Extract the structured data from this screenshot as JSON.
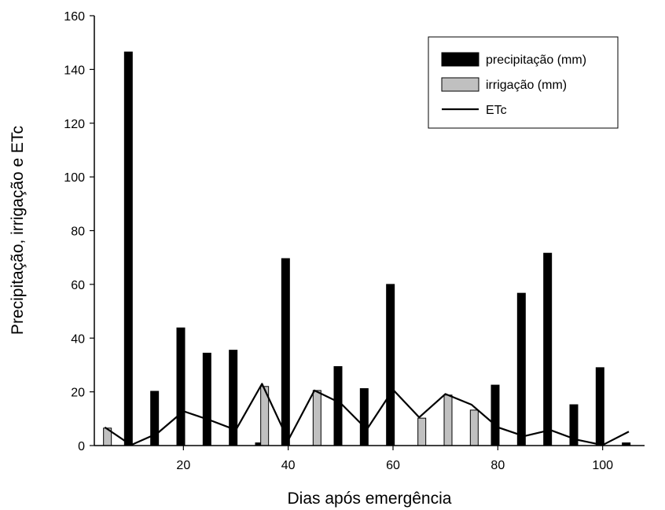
{
  "chart_data": {
    "type": "bar",
    "title": "",
    "xlabel": "Dias após emergência",
    "ylabel": "Precipitação, irrigação e ETc",
    "xlim": [
      3,
      108
    ],
    "ylim": [
      0,
      160
    ],
    "xticks": [
      20,
      40,
      60,
      80,
      100
    ],
    "yticks": [
      0,
      20,
      40,
      60,
      80,
      100,
      120,
      140,
      160
    ],
    "grid": false,
    "legend_position": "top-right",
    "series": [
      {
        "name": "precipitação (mm)",
        "type": "bar",
        "color": "#000000",
        "points": [
          {
            "x": 9.5,
            "y": 146.5
          },
          {
            "x": 14.5,
            "y": 20.2
          },
          {
            "x": 19.5,
            "y": 43.8
          },
          {
            "x": 24.5,
            "y": 34.4
          },
          {
            "x": 29.5,
            "y": 35.5
          },
          {
            "x": 34.5,
            "y": 1.0
          },
          {
            "x": 39.5,
            "y": 69.6
          },
          {
            "x": 49.5,
            "y": 29.4
          },
          {
            "x": 54.5,
            "y": 21.2
          },
          {
            "x": 59.5,
            "y": 60.0
          },
          {
            "x": 79.5,
            "y": 22.5
          },
          {
            "x": 84.5,
            "y": 56.7
          },
          {
            "x": 89.5,
            "y": 71.6
          },
          {
            "x": 94.5,
            "y": 15.2
          },
          {
            "x": 99.5,
            "y": 29.0
          },
          {
            "x": 104.5,
            "y": 1.0
          }
        ]
      },
      {
        "name": "irrigação (mm)",
        "type": "bar",
        "color": "#c0c0c0",
        "points": [
          {
            "x": 5.5,
            "y": 6.5
          },
          {
            "x": 35.5,
            "y": 22.0
          },
          {
            "x": 45.5,
            "y": 20.5
          },
          {
            "x": 65.5,
            "y": 10.2
          },
          {
            "x": 70.5,
            "y": 18.8
          },
          {
            "x": 75.5,
            "y": 13.2
          }
        ]
      },
      {
        "name": "ETc",
        "type": "line",
        "color": "#000000",
        "x": [
          5,
          10,
          15,
          20,
          25,
          30,
          35,
          40,
          45,
          50,
          55,
          60,
          65,
          70,
          75,
          80,
          85,
          90,
          95,
          100,
          105
        ],
        "y": [
          6.8,
          0.2,
          4.5,
          12.8,
          9.5,
          5.8,
          23.0,
          2.0,
          20.5,
          15.8,
          6.0,
          20.8,
          10.5,
          19.2,
          15.2,
          6.8,
          3.5,
          5.8,
          2.2,
          0.2,
          5.2
        ]
      }
    ]
  }
}
